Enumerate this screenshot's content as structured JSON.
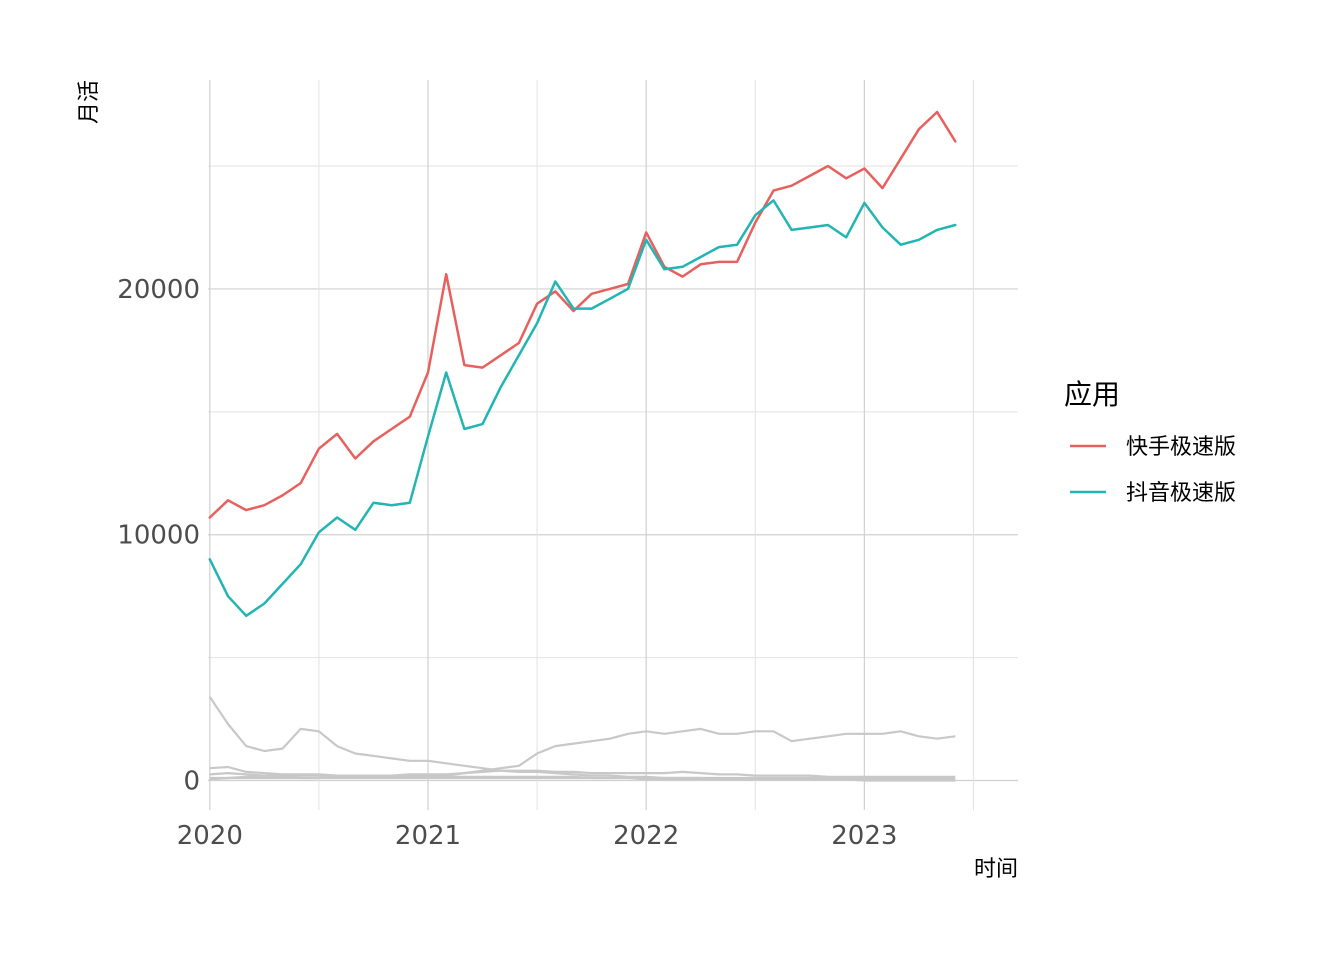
{
  "chart_data": {
    "type": "line",
    "title": "",
    "xlabel": "时间",
    "ylabel": "月活",
    "xlim": [
      "2020-01",
      "2023-10"
    ],
    "ylim": [
      -1200,
      28500
    ],
    "x_ticks": [
      {
        "value": "2020-01",
        "label": "2020"
      },
      {
        "value": "2021-01",
        "label": "2021"
      },
      {
        "value": "2022-01",
        "label": "2022"
      },
      {
        "value": "2023-01",
        "label": "2023"
      }
    ],
    "y_ticks": [
      0,
      10000,
      20000
    ],
    "grid": true,
    "legend": {
      "title": "应用",
      "position": "right"
    },
    "x": [
      "2020-01",
      "2020-02",
      "2020-03",
      "2020-04",
      "2020-05",
      "2020-06",
      "2020-07",
      "2020-08",
      "2020-09",
      "2020-10",
      "2020-11",
      "2020-12",
      "2021-01",
      "2021-02",
      "2021-03",
      "2021-04",
      "2021-05",
      "2021-06",
      "2021-07",
      "2021-08",
      "2021-09",
      "2021-10",
      "2021-11",
      "2021-12",
      "2022-01",
      "2022-02",
      "2022-03",
      "2022-04",
      "2022-05",
      "2022-06",
      "2022-07",
      "2022-08",
      "2022-09",
      "2022-10",
      "2022-11",
      "2022-12",
      "2023-01",
      "2023-02",
      "2023-03",
      "2023-04",
      "2023-05",
      "2023-06"
    ],
    "series": [
      {
        "name": "快手极速版",
        "color": "#E8605E",
        "values": [
          10700,
          11400,
          11000,
          11200,
          11600,
          12100,
          13500,
          14100,
          13100,
          13800,
          14300,
          14800,
          16600,
          20600,
          16900,
          16800,
          17300,
          17800,
          19400,
          19900,
          19100,
          19800,
          20000,
          20200,
          22300,
          20900,
          20500,
          21000,
          21100,
          21100,
          22700,
          24000,
          24200,
          24600,
          25000,
          24500,
          24900,
          24100,
          25300,
          26500,
          27200,
          26000
        ]
      },
      {
        "name": "抖音极速版",
        "color": "#22B5B3",
        "values": [
          9000,
          7500,
          6700,
          7200,
          8000,
          8800,
          10100,
          10700,
          10200,
          11300,
          11200,
          11300,
          14000,
          16600,
          14300,
          14500,
          16000,
          17300,
          18600,
          20300,
          19200,
          19200,
          19600,
          20000,
          22000,
          20800,
          20900,
          21300,
          21700,
          21800,
          23000,
          23600,
          22400,
          22500,
          22600,
          22100,
          23500,
          22500,
          21800,
          22000,
          22400,
          22600
        ]
      },
      {
        "color": "#C8C8C8",
        "values": [
          3400,
          2300,
          1400,
          1200,
          1300,
          2100,
          2000,
          1400,
          1100,
          1000,
          900,
          800,
          800,
          700,
          600,
          500,
          400,
          350,
          350,
          300,
          250,
          200,
          200,
          150,
          150,
          100,
          100,
          100,
          50,
          50,
          50,
          50,
          50,
          50,
          50,
          50,
          50,
          50,
          50,
          50,
          50,
          50
        ]
      },
      {
        "color": "#C8C8C8",
        "values": [
          50,
          100,
          150,
          200,
          150,
          100,
          100,
          150,
          150,
          150,
          150,
          200,
          200,
          200,
          300,
          400,
          500,
          600,
          1100,
          1400,
          1500,
          1600,
          1700,
          1900,
          2000,
          1900,
          2000,
          2100,
          1900,
          1900,
          2000,
          2000,
          1600,
          1700,
          1800,
          1900,
          1900,
          1900,
          2000,
          1800,
          1700,
          1800
        ]
      },
      {
        "color": "#C8C8C8",
        "values": [
          500,
          550,
          350,
          300,
          250,
          250,
          250,
          200,
          200,
          200,
          200,
          250,
          250,
          250,
          300,
          350,
          400,
          400,
          400,
          350,
          350,
          300,
          300,
          300,
          300,
          300,
          350,
          300,
          250,
          250,
          200,
          200,
          200,
          200,
          150,
          150,
          150,
          150,
          150,
          150,
          150,
          150
        ]
      },
      {
        "color": "#C8C8C8",
        "values": [
          250,
          300,
          250,
          200,
          200,
          200,
          200,
          150,
          150,
          150,
          150,
          150,
          150,
          150,
          150,
          150,
          150,
          150,
          150,
          150,
          150,
          100,
          100,
          100,
          100,
          100,
          100,
          100,
          100,
          100,
          100,
          100,
          100,
          100,
          100,
          100,
          100,
          100,
          100,
          100,
          100,
          100
        ]
      },
      {
        "color": "#C8C8C8",
        "values": [
          100,
          100,
          100,
          100,
          100,
          100,
          100,
          100,
          100,
          100,
          100,
          100,
          100,
          100,
          100,
          100,
          100,
          100,
          100,
          100,
          100,
          100,
          100,
          100,
          50,
          50,
          50,
          50,
          50,
          50,
          50,
          50,
          50,
          50,
          50,
          50,
          0,
          0,
          0,
          0,
          0,
          0
        ]
      }
    ]
  }
}
